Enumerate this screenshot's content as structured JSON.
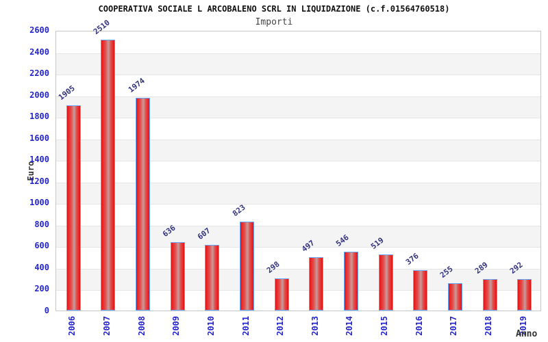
{
  "header": {
    "title": "COOPERATIVA SOCIALE L ARCOBALENO SCRL IN LIQUIDAZIONE (c.f.01564760518)",
    "subtitle": "Importi"
  },
  "chart_data": {
    "type": "bar",
    "title": "COOPERATIVA SOCIALE L ARCOBALENO SCRL IN LIQUIDAZIONE (c.f.01564760518)",
    "subtitle": "Importi",
    "xlabel": "Anno",
    "ylabel": "Euro",
    "categories": [
      "2006",
      "2007",
      "2008",
      "2009",
      "2010",
      "2011",
      "2012",
      "2013",
      "2014",
      "2015",
      "2016",
      "2017",
      "2018",
      "2019"
    ],
    "values": [
      1905,
      2510,
      1974,
      636,
      607,
      823,
      298,
      497,
      546,
      519,
      376,
      255,
      289,
      292
    ],
    "ylim": [
      0,
      2600
    ],
    "ytick_step": 200,
    "grid": "alternating-horizontal-bands",
    "legend": "none",
    "colors": {
      "bar_fill": "#ee2222",
      "bar_fill_dark": "#d41212",
      "bar_highlight": "#c99b9b",
      "bar_border": "#66aaff",
      "tick_text": "#2525cd",
      "value_label_text": "#34347e",
      "band_fill": "#f4f4f4",
      "grid_line": "#e6e6e6",
      "plot_border": "#c8c8c8",
      "title_text": "#111111",
      "subtitle_text": "#444444",
      "axis_title_text": "#333333"
    }
  }
}
